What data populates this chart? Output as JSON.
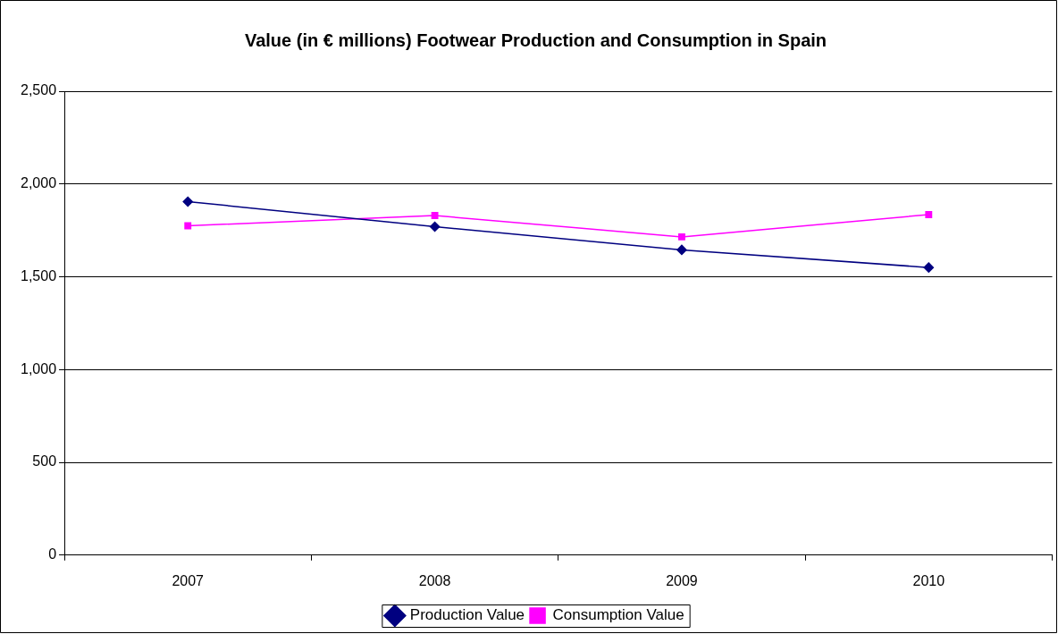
{
  "chart_data": {
    "type": "line",
    "title": "Value (in € millions) Footwear Production and Consumption in Spain",
    "categories": [
      "2007",
      "2008",
      "2009",
      "2010"
    ],
    "series": [
      {
        "name": "Production Value",
        "color": "#000080",
        "values": [
          1905,
          1770,
          1645,
          1550
        ],
        "marker": "diamond"
      },
      {
        "name": "Consumption Value",
        "color": "#ff00ff",
        "values": [
          1775,
          1830,
          1715,
          1835
        ],
        "marker": "square"
      }
    ],
    "ylim": [
      0,
      2500
    ],
    "yticks": [
      {
        "value": 0,
        "label": "0"
      },
      {
        "value": 500,
        "label": "500"
      },
      {
        "value": 1000,
        "label": "1,000"
      },
      {
        "value": 1500,
        "label": "1,500"
      },
      {
        "value": 2000,
        "label": "2,000"
      },
      {
        "value": 2500,
        "label": "2,500"
      }
    ],
    "grid": "y",
    "legend": "bottom",
    "line_style": "solid"
  }
}
